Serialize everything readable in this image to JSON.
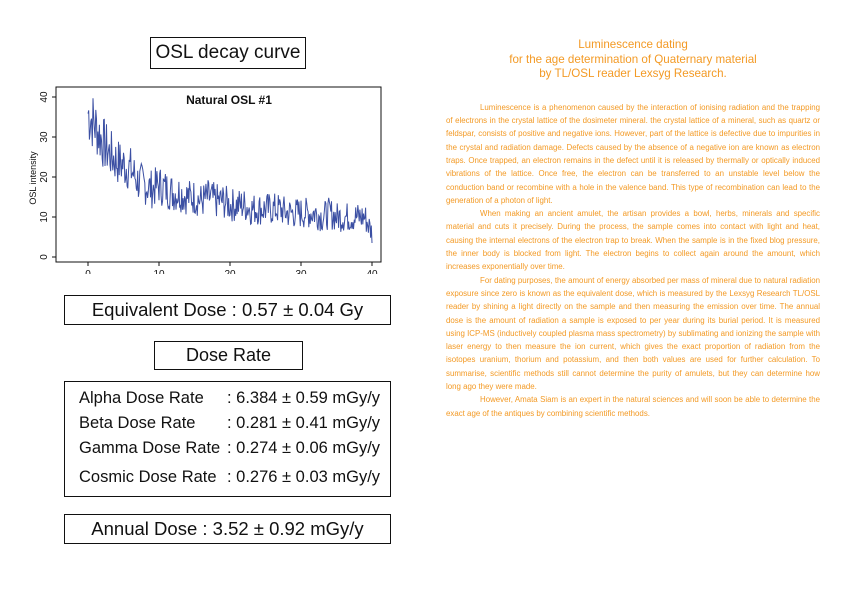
{
  "left": {
    "osl_title": "OSL decay curve",
    "equivalent_dose": "Equivalent Dose : 0.57 ± 0.04 Gy",
    "dose_rate_title": "Dose Rate",
    "rates": [
      {
        "label": "Alpha Dose Rate",
        "value": ": 6.384 ± 0.59 mGy/y"
      },
      {
        "label": "Beta Dose Rate",
        "value": ": 0.281 ± 0.41 mGy/y"
      },
      {
        "label": "Gamma Dose Rate",
        "value": ": 0.274 ± 0.06 mGy/y"
      },
      {
        "label": "Cosmic Dose Rate",
        "value": ": 0.276 ± 0.03 mGy/y"
      }
    ],
    "annual_dose": "Annual Dose : 3.52 ± 0.92 mGy/y"
  },
  "chart_data": {
    "type": "line",
    "title": "Natural OSL #1",
    "xlabel": "",
    "ylabel": "OSL intensity",
    "xlim": [
      0,
      40
    ],
    "ylim": [
      0,
      40
    ],
    "xticks": [
      0,
      10,
      20,
      30,
      40
    ],
    "yticks": [
      0,
      10,
      20,
      30,
      40
    ],
    "grid": false,
    "legend": "none",
    "line_color": "#3b4fa3",
    "series": [
      {
        "x": [
          0,
          1,
          2,
          3,
          4,
          5,
          6,
          7,
          8,
          9,
          10,
          11,
          12,
          13,
          14,
          15,
          16,
          17,
          18,
          19,
          20,
          21,
          22,
          23,
          24,
          25,
          26,
          27,
          28,
          29,
          30,
          31,
          32,
          33,
          34,
          35,
          36,
          37,
          38,
          39,
          40
        ],
        "y": [
          36,
          33,
          29,
          26,
          24,
          23,
          22,
          19,
          18,
          17,
          18,
          17,
          16,
          16,
          15,
          15,
          14,
          15,
          14,
          14,
          13,
          13,
          13,
          12,
          12,
          12,
          12,
          12,
          11,
          11,
          11,
          11,
          11,
          10,
          11,
          10,
          10,
          10,
          10,
          10,
          6
        ]
      }
    ]
  },
  "article": {
    "heading_lines": [
      "Luminescence dating",
      "for the age determination of Quaternary material",
      "by TL/OSL reader Lexsyg Research."
    ],
    "paragraphs": [
      "Luminescence is a phenomenon caused by the interaction of ionising radiation and the trapping of electrons in the crystal lattice of the dosimeter mineral. the crystal lattice of a mineral, such as quartz or feldspar, consists of positive and negative ions. However, part of the lattice is defective due to impurities in the crystal and radiation damage. Defects caused by the absence of a negative ion are known as electron traps. Once trapped, an electron remains in the defect until it is released by thermally or optically induced vibrations of the lattice. Once free, the electron can be transferred to an unstable level below the conduction band or recombine with a hole in the valence band. This type of recombination can lead to the generation of a photon of light.",
      "When making an ancient amulet, the artisan provides a bowl, herbs, minerals and specific material and cuts it precisely. During the process, the sample comes into contact with light and heat, causing the internal electrons of the electron trap to break. When the sample is in the fixed blog pressure, the inner body is blocked from light. The electron begins to collect again around the amount, which increases exponentially over time.",
      "For dating purposes, the amount of energy absorbed per mass of mineral due to natural radiation exposure since zero is known as the equivalent dose, which is measured by the Lexsyg Research TL/OSL reader by shining a light directly on the sample and then measuring the emission over time. The annual dose is the amount of radiation a sample is exposed to per year during its burial period. It is measured using ICP-MS (inductively coupled plasma mass spectrometry) by sublimating and ionizing the sample with laser energy to then measure the ion current, which gives the exact proportion of radiation from the isotopes uranium, thorium and potassium, and then both values are used for further calculation. To summarise, scientific methods still cannot determine the purity of amulets, but they can determine how long ago they were made.",
      "However, Amata Siam is an expert in the natural sciences and will soon be able to determine the exact age of the antiques by combining scientific methods."
    ]
  }
}
